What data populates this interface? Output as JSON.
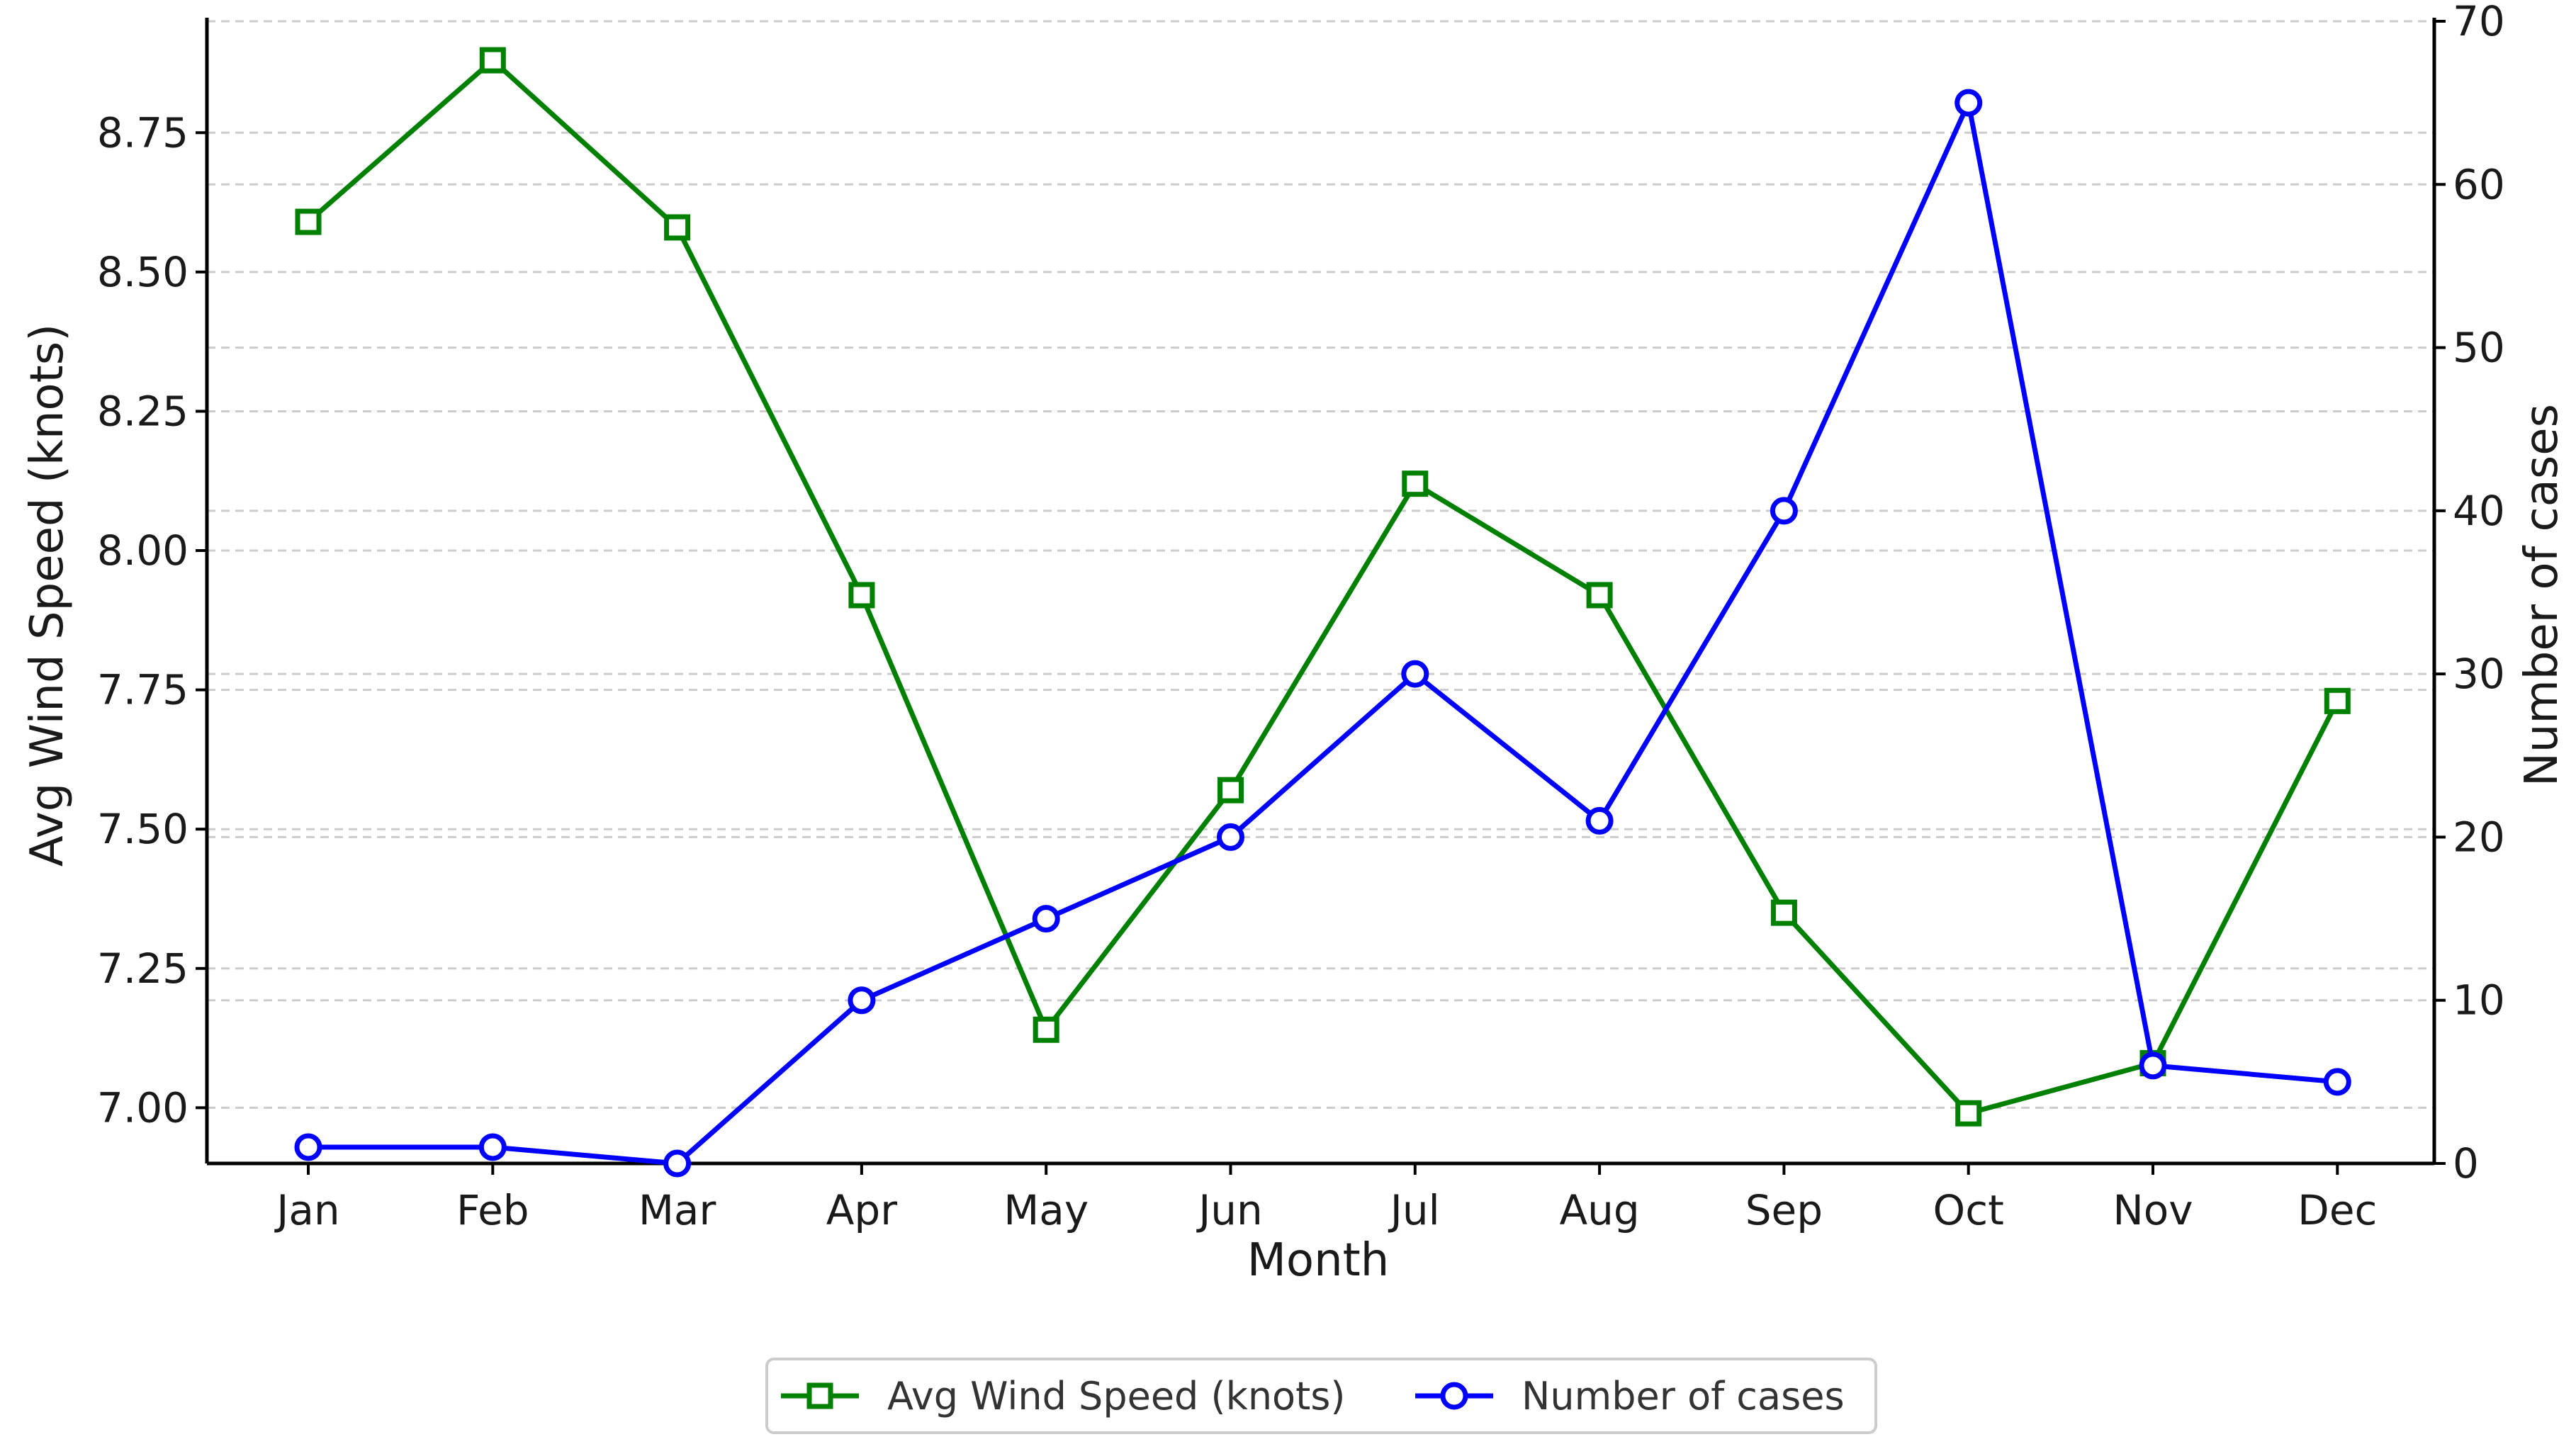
{
  "chart_data": {
    "type": "line",
    "categories": [
      "Jan",
      "Feb",
      "Mar",
      "Apr",
      "May",
      "Jun",
      "Jul",
      "Aug",
      "Sep",
      "Oct",
      "Nov",
      "Dec"
    ],
    "xlabel": "Month",
    "y_left": {
      "label": "Avg Wind Speed (knots)",
      "range": [
        6.9,
        8.95
      ],
      "ticks": [
        "7.00",
        "7.25",
        "7.50",
        "7.75",
        "8.00",
        "8.25",
        "8.50",
        "8.75"
      ]
    },
    "y_right": {
      "label": "Number of cases",
      "range": [
        0,
        70
      ],
      "ticks": [
        "0",
        "10",
        "20",
        "30",
        "40",
        "50",
        "60",
        "70"
      ]
    },
    "series": [
      {
        "name": "Avg Wind Speed (knots)",
        "axis": "left",
        "color": "#008000",
        "marker": "square",
        "values": [
          8.59,
          8.88,
          8.58,
          7.92,
          7.14,
          7.57,
          8.12,
          7.92,
          7.35,
          6.99,
          7.08,
          7.73
        ]
      },
      {
        "name": "Number of cases",
        "axis": "right",
        "color": "#0000ff",
        "marker": "circle",
        "values": [
          1,
          1,
          0,
          10,
          15,
          20,
          30,
          21,
          40,
          65,
          6,
          5
        ]
      }
    ],
    "grid": true,
    "legend_position": "bottom-center"
  }
}
